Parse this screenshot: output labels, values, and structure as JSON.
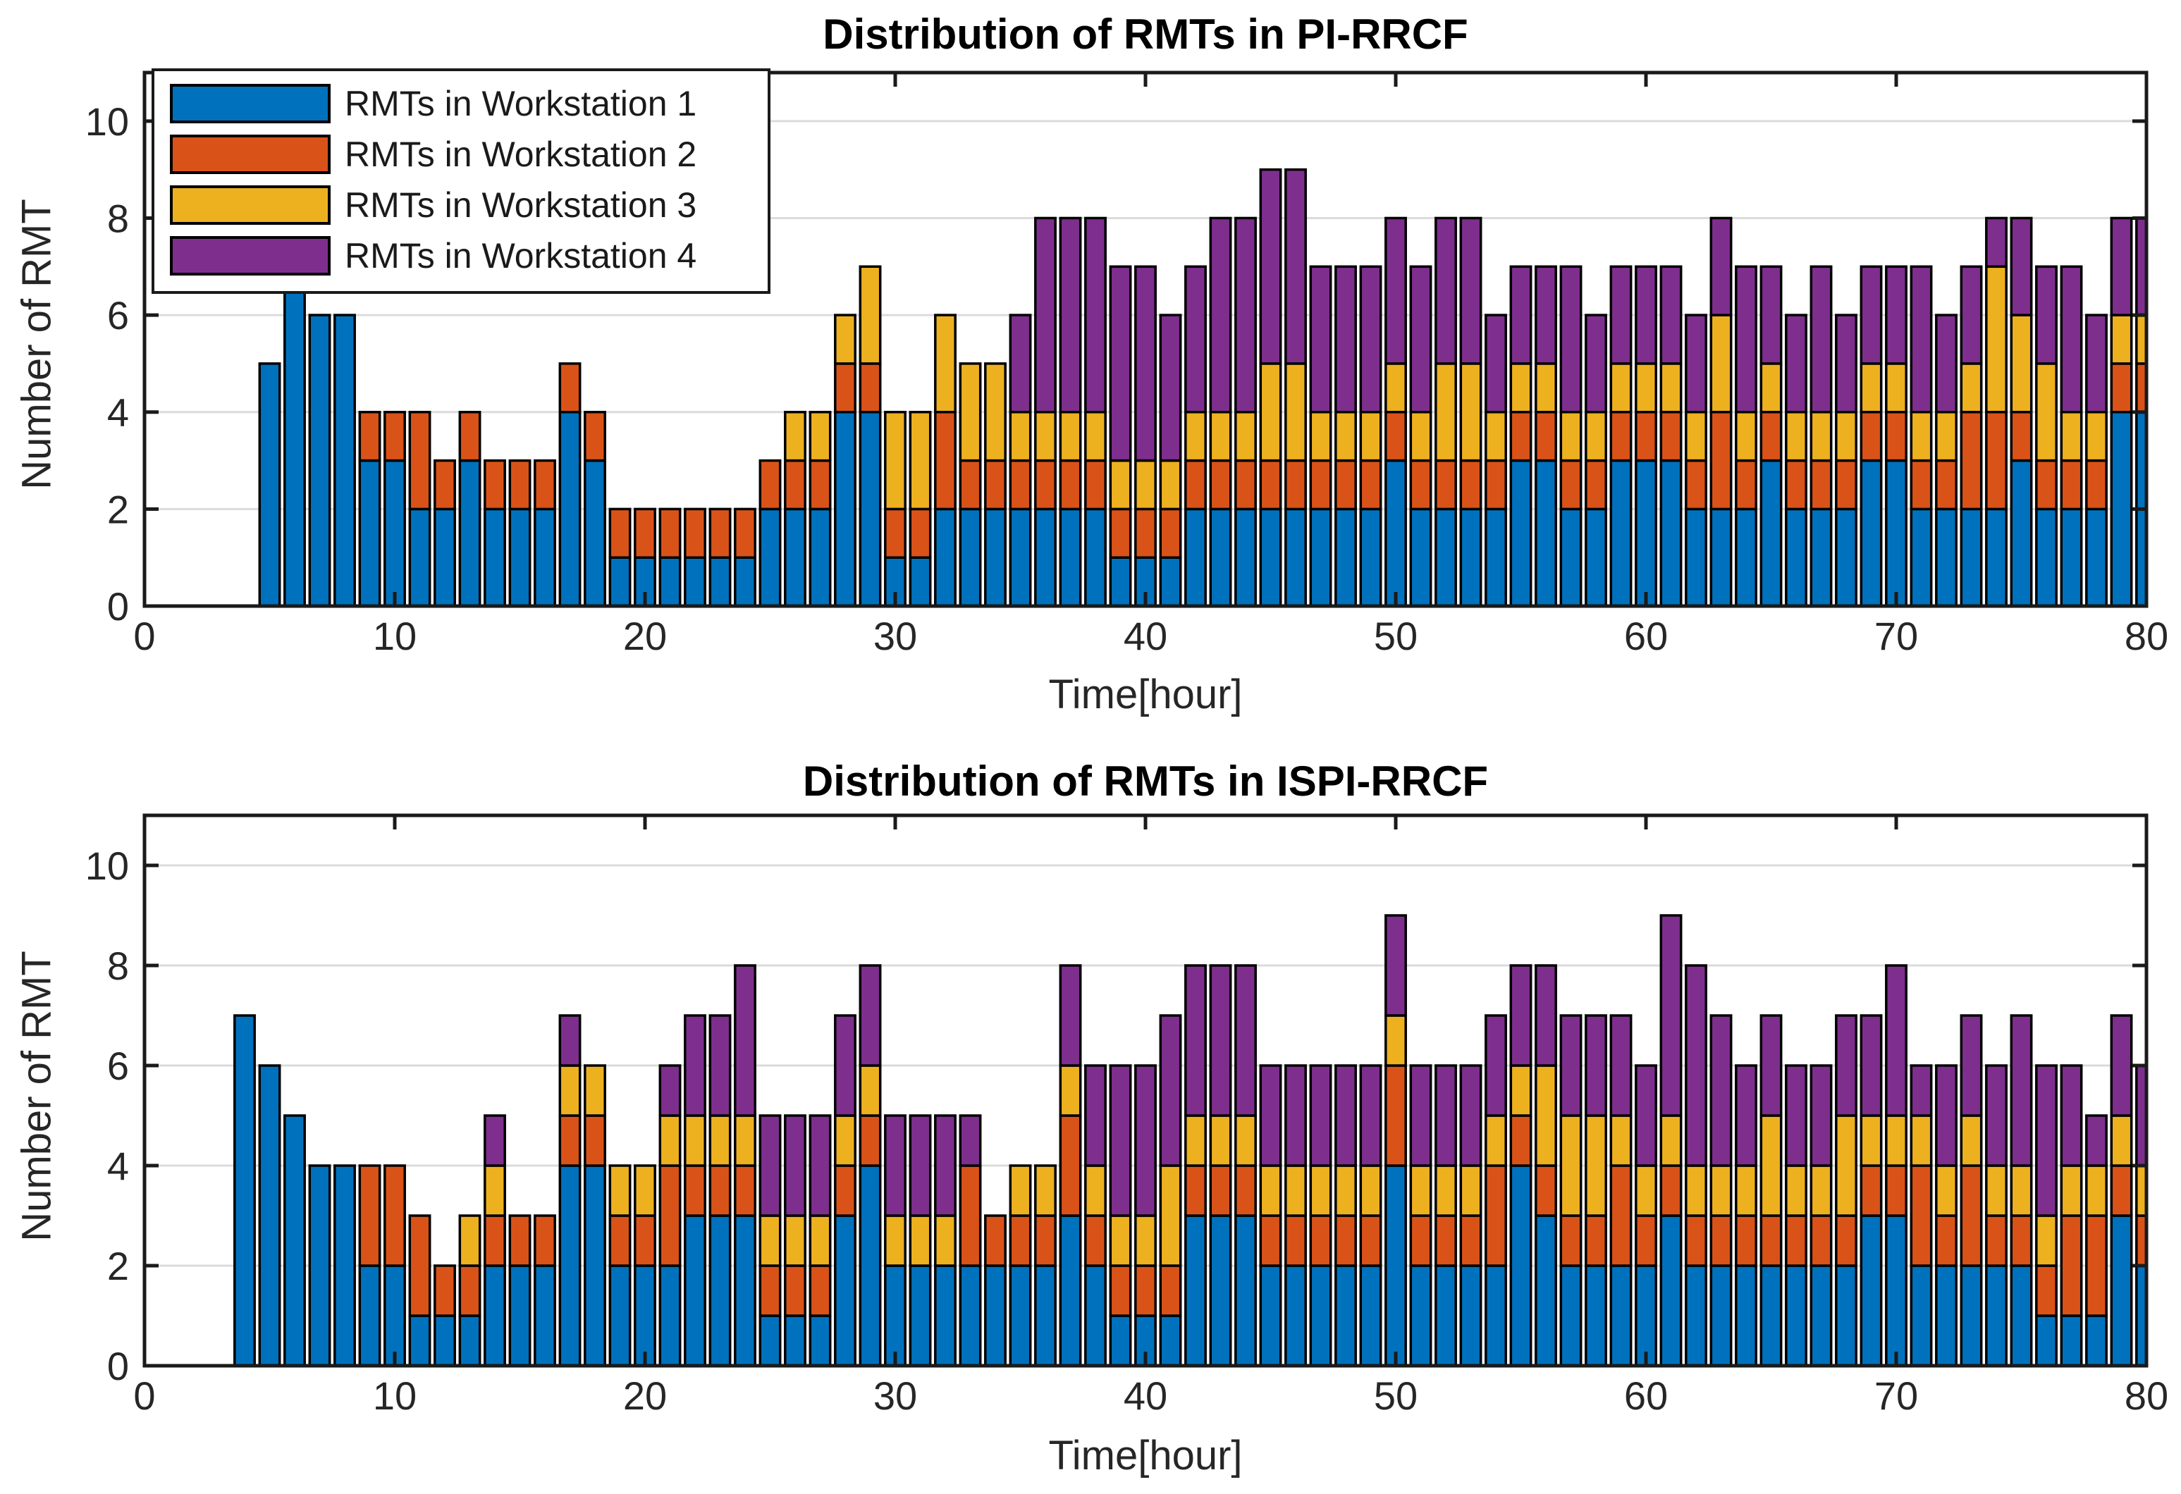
{
  "figure": {
    "background": "#ffffff",
    "axis_color": "#1a1a1a",
    "tick_label_color": "#262626",
    "grid_color": "#dbdbdb"
  },
  "chart_data": [
    {
      "type": "bar",
      "stacked": true,
      "title": "Distribution of RMTs in PI-RRCF",
      "xlabel": "Time[hour]",
      "ylabel": "Number of RMT",
      "xlim": [
        0,
        80
      ],
      "ylim": [
        0,
        11
      ],
      "xticks": [
        0,
        10,
        20,
        30,
        40,
        50,
        60,
        70,
        80
      ],
      "yticks": [
        0,
        2,
        4,
        6,
        8,
        10
      ],
      "grid": true,
      "legend_position": "northwest",
      "legend": [
        {
          "label": "RMTs in Workstation 1",
          "color": "#0072BD"
        },
        {
          "label": "RMTs in Workstation 2",
          "color": "#D95319"
        },
        {
          "label": "RMTs in Workstation 3",
          "color": "#EDB120"
        },
        {
          "label": "RMTs in Workstation 4",
          "color": "#7E2F8E"
        }
      ],
      "hours": [
        5,
        6,
        7,
        8,
        9,
        10,
        11,
        12,
        13,
        14,
        15,
        16,
        17,
        18,
        19,
        20,
        21,
        22,
        23,
        24,
        25,
        26,
        27,
        28,
        29,
        30,
        31,
        32,
        33,
        34,
        35,
        36,
        37,
        38,
        39,
        40,
        41,
        42,
        43,
        44,
        45,
        46,
        47,
        48,
        49,
        50,
        51,
        52,
        53,
        54,
        55,
        56,
        57,
        58,
        59,
        60,
        61,
        62,
        63,
        64,
        65,
        66,
        67,
        68,
        69,
        70,
        71,
        72,
        73,
        74,
        75,
        76,
        77,
        78,
        79,
        80
      ],
      "series": [
        {
          "name": "RMTs in Workstation 1",
          "color": "#0072BD",
          "values": [
            5,
            7,
            6,
            6,
            3,
            3,
            2,
            2,
            3,
            2,
            2,
            2,
            4,
            3,
            1,
            1,
            1,
            1,
            1,
            1,
            2,
            2,
            2,
            4,
            4,
            1,
            1,
            2,
            2,
            2,
            2,
            2,
            2,
            2,
            1,
            1,
            1,
            2,
            2,
            2,
            2,
            2,
            2,
            2,
            2,
            3,
            2,
            2,
            2,
            2,
            3,
            3,
            2,
            2,
            3,
            3,
            3,
            2,
            2,
            2,
            3,
            2,
            2,
            2,
            3,
            3,
            2,
            2,
            2,
            2,
            3,
            2,
            2,
            2,
            4,
            4
          ]
        },
        {
          "name": "RMTs in Workstation 2",
          "color": "#D95319",
          "values": [
            0,
            0,
            0,
            0,
            1,
            1,
            2,
            1,
            1,
            1,
            1,
            1,
            1,
            1,
            1,
            1,
            1,
            1,
            1,
            1,
            1,
            1,
            1,
            1,
            1,
            1,
            1,
            2,
            1,
            1,
            1,
            1,
            1,
            1,
            1,
            1,
            1,
            1,
            1,
            1,
            1,
            1,
            1,
            1,
            1,
            1,
            1,
            1,
            1,
            1,
            1,
            1,
            1,
            1,
            1,
            1,
            1,
            1,
            2,
            1,
            1,
            1,
            1,
            1,
            1,
            1,
            1,
            1,
            2,
            2,
            1,
            1,
            1,
            1,
            1,
            1
          ]
        },
        {
          "name": "RMTs in Workstation 3",
          "color": "#EDB120",
          "values": [
            0,
            0,
            0,
            0,
            0,
            0,
            0,
            0,
            0,
            0,
            0,
            0,
            0,
            0,
            0,
            0,
            0,
            0,
            0,
            0,
            0,
            1,
            1,
            1,
            2,
            2,
            2,
            2,
            2,
            2,
            1,
            1,
            1,
            1,
            1,
            1,
            1,
            1,
            1,
            1,
            2,
            2,
            1,
            1,
            1,
            1,
            1,
            2,
            2,
            1,
            1,
            1,
            1,
            1,
            1,
            1,
            1,
            1,
            2,
            1,
            1,
            1,
            1,
            1,
            1,
            1,
            1,
            1,
            1,
            3,
            2,
            2,
            1,
            1,
            1,
            1
          ]
        },
        {
          "name": "RMTs in Workstation 4",
          "color": "#7E2F8E",
          "values": [
            0,
            0,
            0,
            0,
            0,
            0,
            0,
            0,
            0,
            0,
            0,
            0,
            0,
            0,
            0,
            0,
            0,
            0,
            0,
            0,
            0,
            0,
            0,
            0,
            0,
            0,
            0,
            0,
            0,
            0,
            2,
            4,
            4,
            4,
            4,
            4,
            3,
            3,
            4,
            4,
            4,
            4,
            3,
            3,
            3,
            3,
            3,
            3,
            3,
            2,
            2,
            2,
            3,
            2,
            2,
            2,
            2,
            2,
            2,
            3,
            2,
            2,
            3,
            2,
            2,
            2,
            3,
            2,
            2,
            1,
            2,
            2,
            3,
            2,
            2,
            2
          ]
        }
      ]
    },
    {
      "type": "bar",
      "stacked": true,
      "title": "Distribution of RMTs in ISPI-RRCF",
      "xlabel": "Time[hour]",
      "ylabel": "Number of RMT",
      "xlim": [
        0,
        80
      ],
      "ylim": [
        0,
        11
      ],
      "xticks": [
        0,
        10,
        20,
        30,
        40,
        50,
        60,
        70,
        80
      ],
      "yticks": [
        0,
        2,
        4,
        6,
        8,
        10
      ],
      "grid": true,
      "hours": [
        4,
        5,
        6,
        7,
        8,
        9,
        10,
        11,
        12,
        13,
        14,
        15,
        16,
        17,
        18,
        19,
        20,
        21,
        22,
        23,
        24,
        25,
        26,
        27,
        28,
        29,
        30,
        31,
        32,
        33,
        34,
        35,
        36,
        37,
        38,
        39,
        40,
        41,
        42,
        43,
        44,
        45,
        46,
        47,
        48,
        49,
        50,
        51,
        52,
        53,
        54,
        55,
        56,
        57,
        58,
        59,
        60,
        61,
        62,
        63,
        64,
        65,
        66,
        67,
        68,
        69,
        70,
        71,
        72,
        73,
        74,
        75,
        76,
        77,
        78,
        79,
        80
      ],
      "series": [
        {
          "name": "RMTs in Workstation 1",
          "color": "#0072BD",
          "values": [
            7,
            6,
            5,
            4,
            4,
            2,
            2,
            1,
            1,
            1,
            2,
            2,
            2,
            4,
            4,
            2,
            2,
            2,
            3,
            3,
            3,
            1,
            1,
            1,
            3,
            4,
            2,
            2,
            2,
            2,
            2,
            2,
            2,
            3,
            2,
            1,
            1,
            1,
            3,
            3,
            3,
            2,
            2,
            2,
            2,
            2,
            4,
            2,
            2,
            2,
            2,
            4,
            3,
            2,
            2,
            2,
            2,
            3,
            2,
            2,
            2,
            2,
            2,
            2,
            2,
            3,
            3,
            2,
            2,
            2,
            2,
            2,
            1,
            1,
            1,
            3,
            2
          ]
        },
        {
          "name": "RMTs in Workstation 2",
          "color": "#D95319",
          "values": [
            0,
            0,
            0,
            0,
            0,
            2,
            2,
            2,
            1,
            1,
            1,
            1,
            1,
            1,
            1,
            1,
            1,
            2,
            1,
            1,
            1,
            1,
            1,
            1,
            1,
            1,
            0,
            0,
            0,
            2,
            1,
            1,
            1,
            2,
            1,
            1,
            1,
            1,
            1,
            1,
            1,
            1,
            1,
            1,
            1,
            1,
            2,
            1,
            1,
            1,
            2,
            1,
            1,
            1,
            1,
            2,
            1,
            1,
            1,
            1,
            1,
            1,
            1,
            1,
            1,
            1,
            1,
            2,
            1,
            2,
            1,
            1,
            1,
            2,
            2,
            1,
            1
          ]
        },
        {
          "name": "RMTs in Workstation 3",
          "color": "#EDB120",
          "values": [
            0,
            0,
            0,
            0,
            0,
            0,
            0,
            0,
            0,
            1,
            1,
            0,
            0,
            1,
            1,
            1,
            1,
            1,
            1,
            1,
            1,
            1,
            1,
            1,
            1,
            1,
            1,
            1,
            1,
            0,
            0,
            1,
            1,
            1,
            1,
            1,
            1,
            2,
            1,
            1,
            1,
            1,
            1,
            1,
            1,
            1,
            1,
            1,
            1,
            1,
            1,
            1,
            2,
            2,
            2,
            1,
            1,
            1,
            1,
            1,
            1,
            2,
            1,
            1,
            2,
            1,
            1,
            1,
            1,
            1,
            1,
            1,
            1,
            1,
            1,
            1,
            1
          ]
        },
        {
          "name": "RMTs in Workstation 4",
          "color": "#7E2F8E",
          "values": [
            0,
            0,
            0,
            0,
            0,
            0,
            0,
            0,
            0,
            0,
            1,
            0,
            0,
            1,
            0,
            0,
            0,
            1,
            2,
            2,
            3,
            2,
            2,
            2,
            2,
            2,
            2,
            2,
            2,
            1,
            0,
            0,
            0,
            2,
            2,
            3,
            3,
            3,
            3,
            3,
            3,
            2,
            2,
            2,
            2,
            2,
            2,
            2,
            2,
            2,
            2,
            2,
            2,
            2,
            2,
            2,
            2,
            4,
            4,
            3,
            2,
            2,
            2,
            2,
            2,
            2,
            3,
            1,
            2,
            2,
            2,
            3,
            3,
            2,
            1,
            2,
            2
          ]
        }
      ]
    }
  ]
}
